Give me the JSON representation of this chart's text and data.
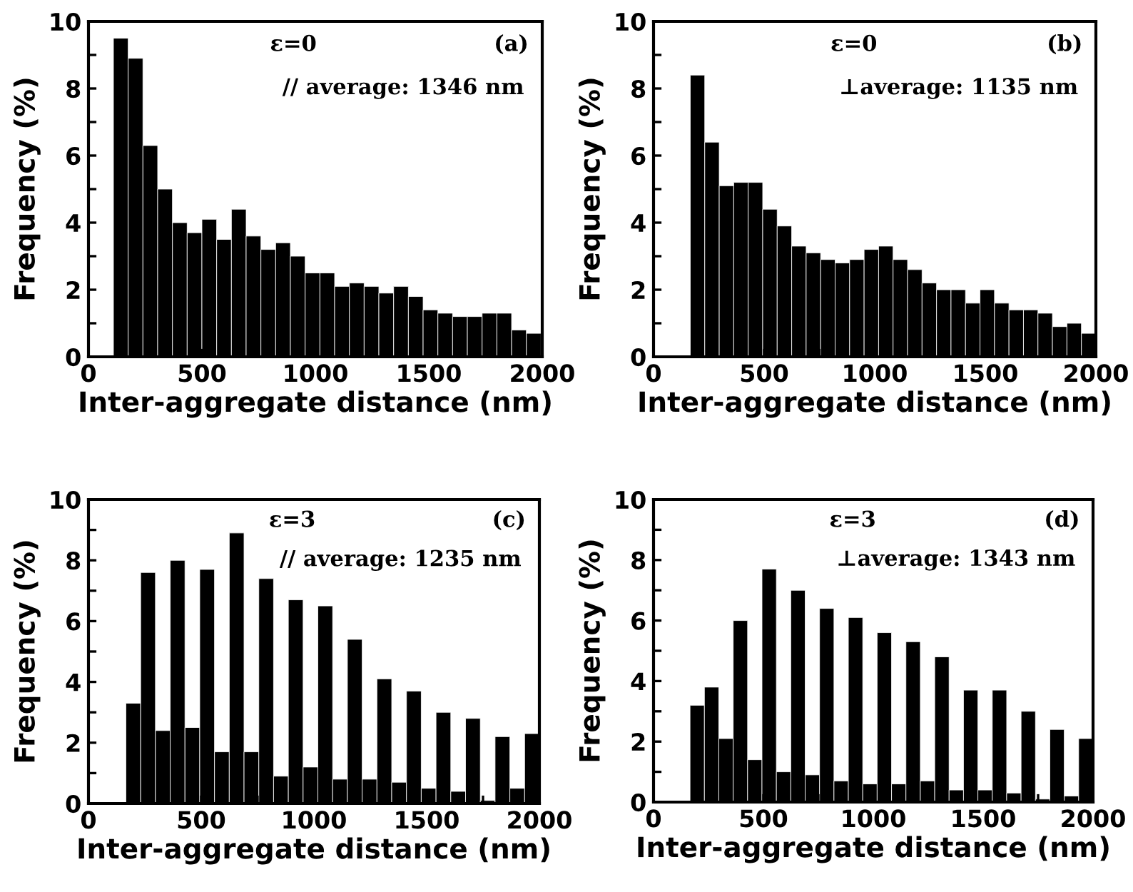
{
  "chart_data": [
    {
      "type": "histogram",
      "xlabel": "Inter-aggregate distance (nm)",
      "ylabel": "Frequency (%)",
      "color": "#000000",
      "annotations": [
        "ε=0",
        "(a)",
        "// average: 1346 nm"
      ],
      "bins": [
        110,
        175,
        240,
        305,
        370,
        435,
        500,
        565,
        630,
        695,
        760,
        825,
        890,
        955,
        1020,
        1085,
        1150,
        1215,
        1280,
        1345,
        1410,
        1475,
        1540,
        1605,
        1670,
        1735,
        1800,
        1865,
        1930,
        1995
      ],
      "values": [
        9.5,
        8.9,
        6.3,
        5.0,
        4.0,
        3.7,
        4.1,
        3.5,
        4.4,
        3.6,
        3.2,
        3.4,
        3.0,
        2.5,
        2.5,
        2.1,
        2.2,
        2.1,
        1.9,
        2.1,
        1.8,
        1.4,
        1.3,
        1.2,
        1.2,
        1.3,
        1.3,
        0.8,
        0.7
      ],
      "xlim": [
        0,
        2000
      ],
      "ylim": [
        0,
        10
      ],
      "xticks": [
        0,
        {
          "value": 250,
          "label": null
        },
        500,
        {
          "value": 750,
          "label": null
        },
        1000,
        {
          "value": 1250,
          "label": null
        },
        1500,
        {
          "value": 1750,
          "label": null
        },
        2000
      ],
      "yticks": [
        0,
        {
          "value": 1,
          "label": null
        },
        2,
        {
          "value": 3,
          "label": null
        },
        4,
        {
          "value": 5,
          "label": null
        },
        6,
        {
          "value": 7,
          "label": null
        },
        8,
        {
          "value": 9,
          "label": null
        },
        10
      ]
    },
    {
      "type": "histogram",
      "xlabel": "Inter-aggregate distance (nm)",
      "ylabel": "Frequency (%)",
      "color": "#000000",
      "annotations": [
        "ε=0",
        "(b)",
        "⊥average: 1135 nm"
      ],
      "bins": [
        166,
        231.5,
        297,
        362.5,
        428,
        493.5,
        559,
        624.5,
        690,
        755.5,
        821,
        886.5,
        952,
        1017.5,
        1083,
        1148.5,
        1214,
        1279.5,
        1345,
        1410.5,
        1476,
        1541.5,
        1607,
        1672.5,
        1738,
        1803.5,
        1869,
        1934.5,
        2000
      ],
      "values": [
        8.4,
        6.4,
        5.1,
        5.2,
        5.2,
        4.4,
        3.9,
        3.3,
        3.1,
        2.9,
        2.8,
        2.9,
        3.2,
        3.3,
        2.9,
        2.6,
        2.2,
        2.0,
        2.0,
        1.6,
        2.0,
        1.6,
        1.4,
        1.4,
        1.3,
        0.9,
        1.0,
        0.7
      ],
      "xlim": [
        0,
        2000
      ],
      "ylim": [
        0,
        10
      ],
      "xticks": [
        0,
        {
          "value": 250,
          "label": null
        },
        500,
        {
          "value": 750,
          "label": null
        },
        1000,
        {
          "value": 1250,
          "label": null
        },
        1500,
        {
          "value": 1750,
          "label": null
        },
        2000
      ],
      "yticks": [
        0,
        {
          "value": 1,
          "label": null
        },
        2,
        {
          "value": 3,
          "label": null
        },
        4,
        {
          "value": 5,
          "label": null
        },
        6,
        {
          "value": 7,
          "label": null
        },
        8,
        {
          "value": 9,
          "label": null
        },
        10
      ]
    },
    {
      "type": "histogram",
      "xlabel": "Inter-aggregate distance (nm)",
      "ylabel": "Frequency (%)",
      "color": "#000000",
      "annotations": [
        "ε=3",
        "(c)",
        "// average: 1235 nm"
      ],
      "bins": [
        166,
        231.5,
        297,
        362.5,
        428,
        493.5,
        559,
        624.5,
        690,
        755.5,
        821,
        886.5,
        952,
        1017.5,
        1083,
        1148.5,
        1214,
        1279.5,
        1345,
        1410.5,
        1476,
        1541.5,
        1607,
        1672.5,
        1738,
        1803.5,
        1869,
        1934.5,
        2000
      ],
      "values": [
        3.3,
        7.6,
        2.4,
        8.0,
        2.5,
        7.7,
        1.7,
        8.9,
        1.7,
        7.4,
        0.9,
        6.7,
        1.2,
        6.5,
        0.8,
        5.4,
        0.8,
        4.1,
        0.7,
        3.7,
        0.5,
        3.0,
        0.4,
        2.8,
        0.1,
        2.2,
        0.5,
        2.3
      ],
      "xlim": [
        0,
        2000
      ],
      "ylim": [
        0,
        10
      ],
      "xticks": [
        0,
        {
          "value": 250,
          "label": null
        },
        500,
        {
          "value": 750,
          "label": null
        },
        1000,
        {
          "value": 1250,
          "label": null
        },
        1500,
        {
          "value": 1750,
          "label": null
        },
        2000
      ],
      "yticks": [
        0,
        {
          "value": 1,
          "label": null
        },
        2,
        {
          "value": 3,
          "label": null
        },
        4,
        {
          "value": 5,
          "label": null
        },
        6,
        {
          "value": 7,
          "label": null
        },
        8,
        {
          "value": 9,
          "label": null
        },
        10
      ]
    },
    {
      "type": "histogram",
      "xlabel": "Inter-aggregate distance (nm)",
      "ylabel": "Frequency (%)",
      "color": "#000000",
      "annotations": [
        "ε=3",
        "(d)",
        "⊥average: 1343 nm"
      ],
      "bins": [
        166,
        231.5,
        297,
        362.5,
        428,
        493.5,
        559,
        624.5,
        690,
        755.5,
        821,
        886.5,
        952,
        1017.5,
        1083,
        1148.5,
        1214,
        1279.5,
        1345,
        1410.5,
        1476,
        1541.5,
        1607,
        1672.5,
        1738,
        1803.5,
        1869,
        1934.5,
        2000
      ],
      "values": [
        3.2,
        3.8,
        2.1,
        6.0,
        1.4,
        7.7,
        1.0,
        7.0,
        0.9,
        6.4,
        0.7,
        6.1,
        0.6,
        5.6,
        0.6,
        5.3,
        0.7,
        4.8,
        0.4,
        3.7,
        0.4,
        3.7,
        0.3,
        3.0,
        0.1,
        2.4,
        0.2,
        2.1
      ],
      "xlim": [
        0,
        2000
      ],
      "ylim": [
        0,
        10
      ],
      "xticks": [
        0,
        {
          "value": 250,
          "label": null
        },
        500,
        {
          "value": 750,
          "label": null
        },
        1000,
        {
          "value": 1250,
          "label": null
        },
        1500,
        {
          "value": 1750,
          "label": null
        },
        2000
      ],
      "yticks": [
        0,
        {
          "value": 1,
          "label": null
        },
        2,
        {
          "value": 3,
          "label": null
        },
        4,
        {
          "value": 5,
          "label": null
        },
        6,
        {
          "value": 7,
          "label": null
        },
        8,
        {
          "value": 9,
          "label": null
        },
        10
      ]
    }
  ]
}
